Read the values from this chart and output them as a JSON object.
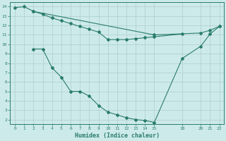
{
  "line1_x": [
    0,
    1,
    2,
    15,
    20,
    21,
    22
  ],
  "line1_y": [
    13.9,
    14.0,
    13.5,
    11.0,
    11.2,
    11.5,
    11.9
  ],
  "line2_x": [
    2,
    3,
    4,
    5,
    6,
    7,
    8,
    9,
    10,
    11,
    12,
    13,
    14,
    15,
    18,
    20,
    21,
    22
  ],
  "line2_y": [
    9.5,
    9.5,
    7.5,
    6.5,
    5.0,
    5.0,
    4.5,
    3.5,
    2.8,
    2.5,
    2.2,
    2.0,
    1.9,
    1.7,
    8.5,
    9.8,
    11.1,
    11.9
  ],
  "line3_x": [
    2,
    3,
    4,
    5,
    6,
    7,
    8,
    9,
    10,
    11,
    12,
    13,
    14,
    15,
    18
  ],
  "line3_y": [
    13.5,
    13.2,
    12.8,
    12.5,
    12.2,
    11.9,
    11.6,
    11.3,
    10.5,
    10.5,
    10.5,
    10.6,
    10.7,
    10.8,
    11.1
  ],
  "color": "#2a7d6b",
  "bg_color": "#cdeaea",
  "grid_color": "#b8d8d8",
  "xlabel": "Humidex (Indice chaleur)",
  "xlim": [
    -0.5,
    22.5
  ],
  "ylim": [
    1.5,
    14.5
  ],
  "xticks": [
    0,
    1,
    2,
    3,
    4,
    5,
    6,
    7,
    8,
    9,
    10,
    11,
    12,
    13,
    14,
    15,
    18,
    20,
    21,
    22
  ],
  "yticks": [
    2,
    3,
    4,
    5,
    6,
    7,
    8,
    9,
    10,
    11,
    12,
    13,
    14
  ],
  "marker": "D",
  "markersize": 2.0,
  "linewidth": 0.8
}
